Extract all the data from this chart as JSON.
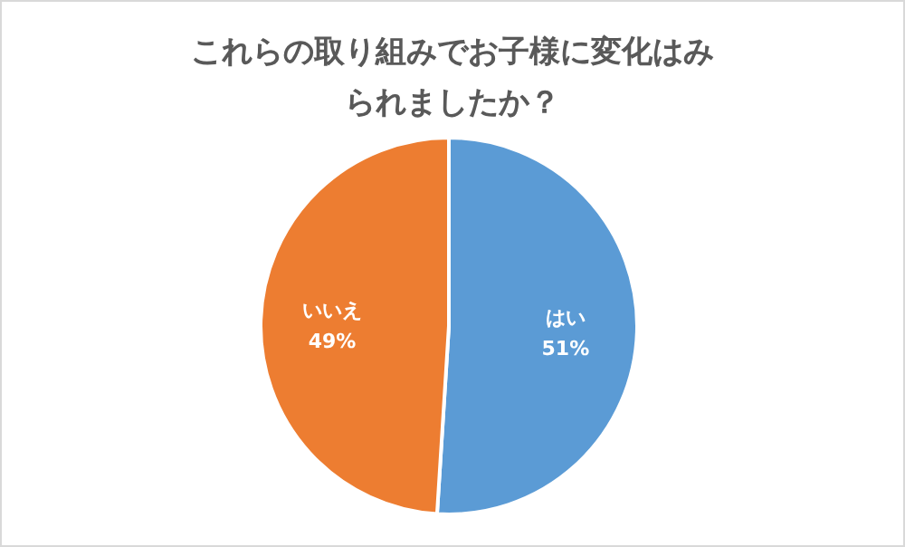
{
  "chart_data": {
    "type": "pie",
    "title": "これらの取り組みでお子様に変化はみられましたか？",
    "categories": [
      "はい",
      "いいえ"
    ],
    "values": [
      51,
      49
    ],
    "colors": [
      "#5b9bd5",
      "#ed7d31"
    ],
    "value_labels": [
      "51%",
      "49%"
    ]
  }
}
